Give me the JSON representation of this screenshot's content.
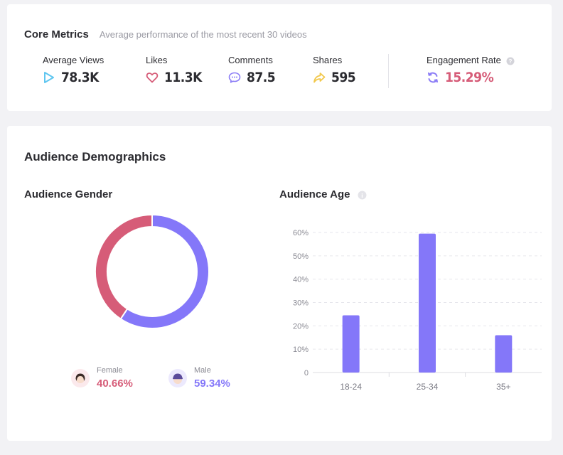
{
  "core_metrics": {
    "title": "Core Metrics",
    "subtitle": "Average performance of the most recent 30 videos",
    "items": [
      {
        "label": "Average Views",
        "value": "78.3K",
        "icon": "play-icon",
        "color": "#5fc6f0"
      },
      {
        "label": "Likes",
        "value": "11.3K",
        "icon": "heart-icon",
        "color": "#d65c78"
      },
      {
        "label": "Comments",
        "value": "87.5",
        "icon": "comment-icon",
        "color": "#8b7cf6"
      },
      {
        "label": "Shares",
        "value": "595",
        "icon": "share-icon",
        "color": "#f2c84b"
      }
    ],
    "engagement": {
      "label": "Engagement Rate",
      "value": "15.29%",
      "icon": "refresh-icon",
      "color": "#8b7cf6",
      "value_color": "#d65c78"
    }
  },
  "demographics": {
    "title": "Audience Demographics",
    "gender": {
      "title": "Audience Gender",
      "female": {
        "label": "Female",
        "value": "40.66%",
        "color": "#d65c78"
      },
      "male": {
        "label": "Male",
        "value": "59.34%",
        "color": "#8477f9"
      }
    },
    "age": {
      "title": "Audience Age"
    }
  },
  "chart_data": [
    {
      "type": "pie",
      "donut": true,
      "categories": [
        "Female",
        "Male"
      ],
      "values": [
        40.66,
        59.34
      ],
      "colors": [
        "#d65c78",
        "#8477f9"
      ],
      "title": "Audience Gender"
    },
    {
      "type": "bar",
      "title": "Audience Age",
      "categories": [
        "18-24",
        "25-34",
        "35+"
      ],
      "values": [
        24.5,
        59.5,
        16
      ],
      "ylim": [
        0,
        60
      ],
      "yticks": [
        "0",
        "10%",
        "20%",
        "30%",
        "40%",
        "50%",
        "60%"
      ],
      "grid": true,
      "color": "#8477f9"
    }
  ]
}
